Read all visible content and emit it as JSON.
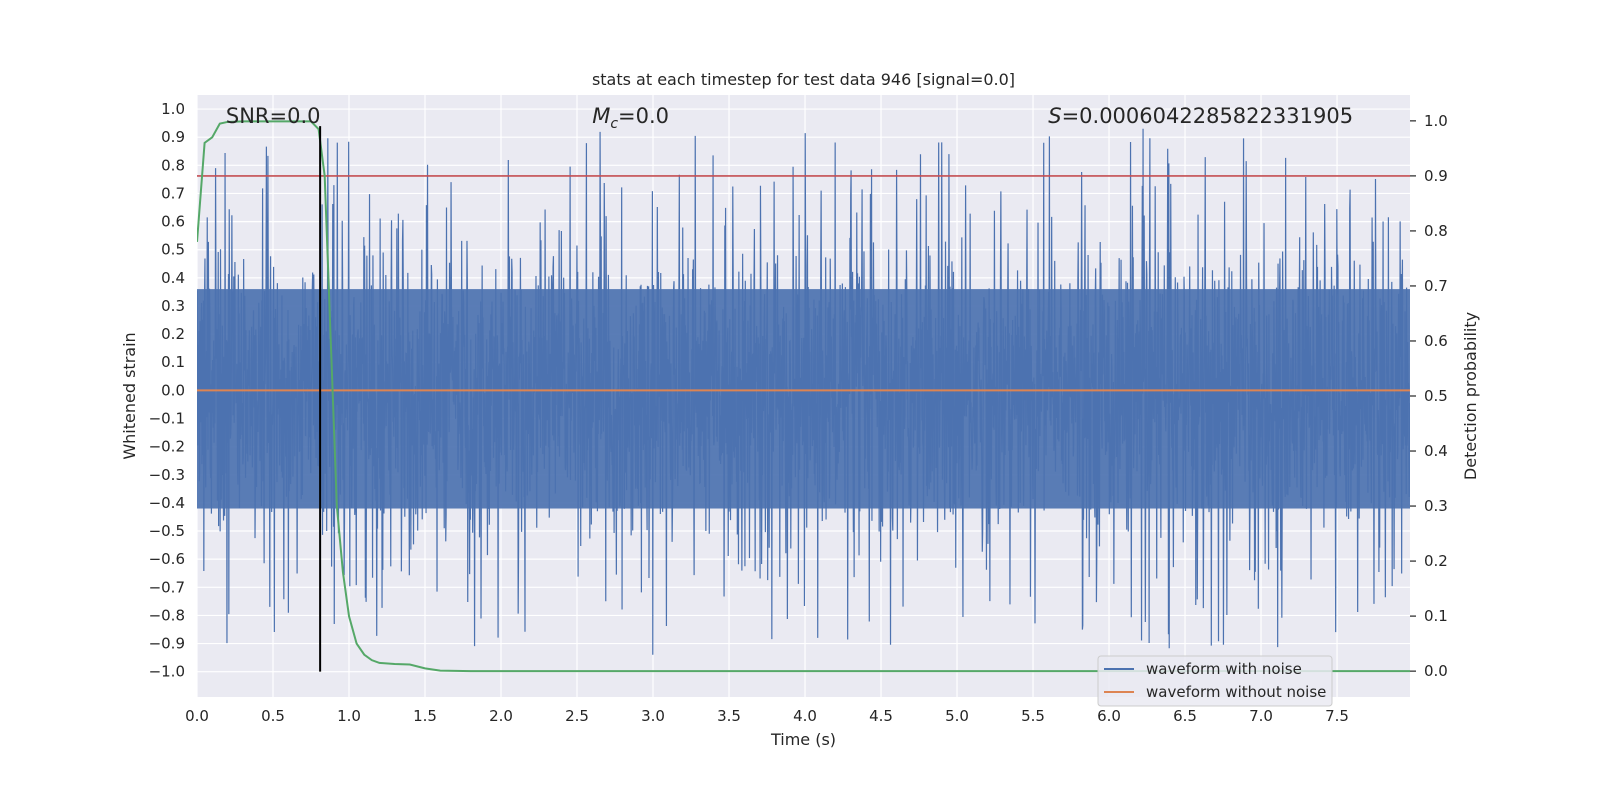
{
  "chart_data": {
    "type": "line",
    "title": "stats at each timestep for test data 946 [signal=0.0]",
    "xlabel": "Time (s)",
    "ylabel": "Whitened strain",
    "y2label": "Detection probability",
    "xlim": [
      0.0,
      7.98
    ],
    "ylim": [
      -1.09,
      1.05
    ],
    "y2lim": [
      -0.047,
      1.047
    ],
    "xticks": [
      0.0,
      0.5,
      1.0,
      1.5,
      2.0,
      2.5,
      3.0,
      3.5,
      4.0,
      4.5,
      5.0,
      5.5,
      6.0,
      6.5,
      7.0,
      7.5
    ],
    "xtick_labels": [
      "0.0",
      "0.5",
      "1.0",
      "1.5",
      "2.0",
      "2.5",
      "3.0",
      "3.5",
      "4.0",
      "4.5",
      "5.0",
      "5.5",
      "6.0",
      "6.5",
      "7.0",
      "7.5"
    ],
    "yticks": [
      1.0,
      0.9,
      0.8,
      0.7,
      0.6,
      0.5,
      0.4,
      0.3,
      0.2,
      0.1,
      0.0,
      -0.1,
      -0.2,
      -0.3,
      -0.4,
      -0.5,
      -0.6,
      -0.7,
      -0.8,
      -0.9,
      -1.0
    ],
    "ytick_labels": [
      "1.0",
      "0.9",
      "0.8",
      "0.7",
      "0.6",
      "0.5",
      "0.4",
      "0.3",
      "0.2",
      "0.1",
      "0.0",
      "−0.1",
      "−0.2",
      "−0.3",
      "−0.4",
      "−0.5",
      "−0.6",
      "−0.7",
      "−0.8",
      "−0.9",
      "−1.0"
    ],
    "y2ticks": [
      1.0,
      0.9,
      0.8,
      0.7,
      0.6,
      0.5,
      0.4,
      0.3,
      0.2,
      0.1,
      0.0
    ],
    "y2tick_labels": [
      "1.0",
      "0.9",
      "0.8",
      "0.7",
      "0.6",
      "0.5",
      "0.4",
      "0.3",
      "0.2",
      "0.1",
      "0.0"
    ],
    "annotations": {
      "snr": "SNR=0.0",
      "mc_symbol": "M",
      "mc_sub": "c",
      "mc_value": "=0.0",
      "s_symbol": "S",
      "s_value": "=0.0006042285822331905"
    },
    "legend": {
      "position": "lower right",
      "entries": [
        "waveform with noise",
        "waveform without noise"
      ]
    },
    "colors": {
      "background": "#eaeaf2",
      "grid": "#ffffff",
      "noise": "#4c72b0",
      "clean": "#dd8452",
      "probability": "#55a868",
      "threshold": "#c44e52",
      "marker": "#000000"
    },
    "threshold_probability": 0.9,
    "peak_time": 0.81,
    "series": [
      {
        "name": "waveform with noise",
        "axis": "left",
        "description": "dense whitened-strain noise, roughly within -0.6..0.6 with spikes up to ~0.93 and down to ~-1.0",
        "amplitude_range": [
          -1.0,
          0.93
        ]
      },
      {
        "name": "waveform without noise",
        "axis": "left",
        "x": [
          0.0,
          7.98
        ],
        "y": [
          0.0,
          0.0
        ]
      },
      {
        "name": "detection probability",
        "axis": "right",
        "x": [
          0.0,
          0.05,
          0.1,
          0.15,
          0.2,
          0.3,
          0.4,
          0.5,
          0.6,
          0.7,
          0.75,
          0.8,
          0.84,
          0.88,
          0.92,
          0.96,
          1.0,
          1.05,
          1.1,
          1.15,
          1.2,
          1.3,
          1.4,
          1.5,
          1.6,
          1.8,
          2.0,
          3.0,
          4.0,
          5.0,
          6.0,
          7.0,
          7.98
        ],
        "y": [
          0.78,
          0.96,
          0.97,
          0.995,
          0.998,
          0.999,
          0.999,
          0.999,
          0.999,
          0.999,
          0.999,
          0.985,
          0.9,
          0.6,
          0.3,
          0.18,
          0.1,
          0.05,
          0.03,
          0.02,
          0.015,
          0.013,
          0.012,
          0.005,
          0.001,
          0.0,
          0.0,
          0.0,
          0.0,
          0.0,
          0.0,
          0.0,
          0.0
        ]
      }
    ]
  }
}
